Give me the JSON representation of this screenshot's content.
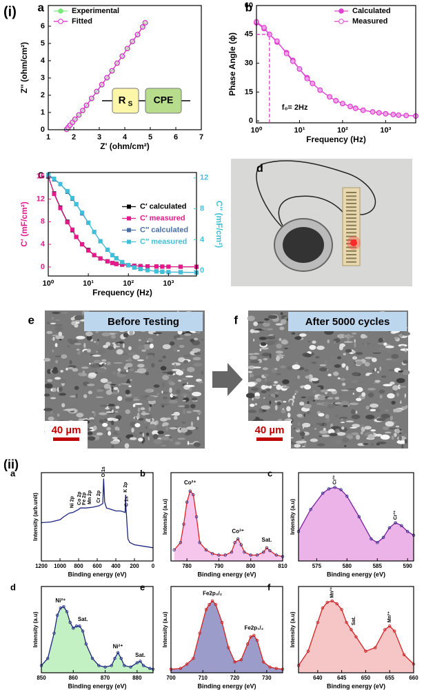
{
  "figure": {
    "part_i": "(i)",
    "part_ii": "(ii)",
    "panel_d": "d",
    "panel_e": "e",
    "panel_f": "f",
    "caption_e": "Before Testing",
    "caption_f": "After 5000 cycles",
    "scale_e": "40 µm",
    "scale_f": "40 µm"
  },
  "chart_data": [
    {
      "panel": "a",
      "type": "scatter",
      "marker": "circle",
      "xlabel": "Z' (ohm/cm²)",
      "ylabel": "Z'' (ohm/cm²)",
      "xlim": [
        1,
        7
      ],
      "xticks": [
        1,
        2,
        3,
        4,
        5,
        6,
        7
      ],
      "ylim": [
        0,
        7.2
      ],
      "yticks": [
        0,
        1,
        2,
        3,
        4,
        5,
        6
      ],
      "legend": "upper left",
      "x": [
        1.72,
        1.78,
        1.85,
        1.95,
        2.05,
        2.2,
        2.35,
        2.5,
        2.7,
        2.9,
        3.1,
        3.3,
        3.5,
        3.7,
        3.9,
        4.1,
        4.3,
        4.5,
        4.7,
        4.8
      ],
      "series": [
        {
          "name": "Experimental",
          "color": "#7be87b",
          "values": [
            0.02,
            0.12,
            0.25,
            0.42,
            0.6,
            0.85,
            1.1,
            1.4,
            1.8,
            2.2,
            2.6,
            3.0,
            3.4,
            3.85,
            4.25,
            4.7,
            5.1,
            5.5,
            5.95,
            6.2
          ]
        },
        {
          "name": "Fitted",
          "color": "#e020d0",
          "values": [
            0.02,
            0.13,
            0.26,
            0.43,
            0.61,
            0.86,
            1.12,
            1.42,
            1.82,
            2.22,
            2.62,
            3.02,
            3.42,
            3.86,
            4.27,
            4.71,
            5.12,
            5.52,
            5.96,
            6.2
          ]
        }
      ],
      "inset": {
        "resistor": "R",
        "resistor_sub": "S",
        "element": "CPE"
      }
    },
    {
      "panel": "b",
      "type": "scatter",
      "marker": "circle",
      "xlabel": "Frequency (Hz)",
      "ylabel": "Phase Angle (ϕ)",
      "xlog": true,
      "xlim": [
        1,
        5000
      ],
      "xticks": [
        {
          "value": 1,
          "label": "10⁰"
        },
        {
          "value": 10,
          "label": "10¹"
        },
        {
          "value": 100,
          "label": "10²"
        },
        {
          "value": 1000,
          "label": "10³"
        }
      ],
      "ylim": [
        -1,
        60
      ],
      "yticks": [
        0,
        15,
        30,
        45,
        60
      ],
      "legend": "upper right",
      "x": [
        1,
        1.5,
        2,
        3,
        5,
        7,
        10,
        15,
        20,
        30,
        50,
        70,
        100,
        150,
        200,
        300,
        500,
        700,
        1000,
        1500,
        2000,
        3000,
        5000
      ],
      "series": [
        {
          "name": "Calculated",
          "color": "#e040d0",
          "values": [
            51,
            48,
            45,
            41,
            35.5,
            31.5,
            27,
            22.5,
            19.5,
            16,
            12.5,
            10.5,
            9,
            7.5,
            6.6,
            5.6,
            4.7,
            4.2,
            3.7,
            3.3,
            3,
            2.8,
            2.6
          ]
        },
        {
          "name": "Measured",
          "color": "#e040d0",
          "values": [
            51.5,
            48.5,
            45,
            41.5,
            35,
            31,
            27,
            22,
            19.5,
            16,
            12.5,
            10.5,
            9,
            7.5,
            6.5,
            5.5,
            4.7,
            4.2,
            3.7,
            3.3,
            3,
            2.8,
            2.5
          ]
        }
      ],
      "annotations": [
        {
          "text": "f₀= 2Hz",
          "x": 2,
          "y": 45
        }
      ]
    },
    {
      "panel": "c",
      "type": "scatter",
      "marker": "square",
      "xlabel": "Frequency (Hz)",
      "ylabel": "C′ (mF/cm²)",
      "y2label": "C″ (mF/cm²)",
      "xlog": true,
      "y_color": "#e6198c",
      "y2_color": "#40c0d8",
      "xlim": [
        1,
        5000
      ],
      "xticks": [
        {
          "value": 1,
          "label": "10⁰"
        },
        {
          "value": 10,
          "label": "10¹"
        },
        {
          "value": 100,
          "label": "10²"
        },
        {
          "value": 1000,
          "label": "10³"
        }
      ],
      "ylim": [
        -1.6,
        16.7
      ],
      "yticks": [
        0,
        4,
        8,
        12,
        16
      ],
      "y2lim": [
        -0.7,
        12.7
      ],
      "y2ticks": [
        0,
        4,
        8,
        12
      ],
      "legend": "center right",
      "x": [
        1,
        1.4,
        2,
        3,
        4,
        5,
        7,
        10,
        14,
        20,
        30,
        40,
        50,
        70,
        100,
        140,
        200,
        300,
        500,
        700,
        1000,
        2000,
        5000
      ],
      "series": [
        {
          "name": "C′ calculated",
          "color": "#000000",
          "values": [
            16,
            13,
            10.5,
            8,
            6.5,
            5.3,
            4,
            3,
            2.1,
            1.5,
            1,
            0.7,
            0.55,
            0.4,
            0.3,
            0.2,
            0.15,
            0.1,
            0.08,
            0.06,
            0.05,
            0.04,
            0.03
          ]
        },
        {
          "name": "C′ measured",
          "color": "#e6198c",
          "values": [
            16.1,
            12.9,
            10.4,
            7.9,
            6.6,
            5.3,
            4,
            2.9,
            2.1,
            1.5,
            1,
            0.7,
            0.5,
            0.4,
            0.3,
            0.2,
            0.15,
            0.1,
            0.08,
            0.06,
            0.05,
            0.04,
            0.03
          ]
        },
        {
          "name": "C″ calculated",
          "color": "#4a6fa5",
          "axis": "y2",
          "values": [
            12.3,
            11.8,
            11.2,
            10.2,
            9.3,
            8.6,
            7.4,
            6.2,
            5,
            3.8,
            2.7,
            2,
            1.6,
            1.1,
            0.7,
            0.4,
            0.2,
            0.05,
            -0.1,
            -0.15,
            -0.2,
            -0.2,
            -0.25
          ]
        },
        {
          "name": "C″ measured",
          "color": "#40c0d8",
          "axis": "y2",
          "values": [
            12.4,
            11.9,
            11.2,
            10.3,
            9.4,
            8.6,
            7.5,
            6.2,
            5,
            3.8,
            2.7,
            2,
            1.6,
            1.1,
            0.7,
            0.4,
            0.2,
            0.05,
            -0.1,
            -0.15,
            -0.2,
            -0.22,
            -0.25
          ]
        }
      ]
    },
    {
      "panel": "a",
      "type": "line",
      "xlabel": "Binding energy (eV)",
      "ylabel": "Intensity (arb.unit)",
      "xlim": [
        1200,
        0
      ],
      "xticks": [
        1200,
        1000,
        800,
        600,
        400,
        200,
        0
      ],
      "ylim": [
        0,
        120
      ],
      "x": [
        1200,
        1100,
        1000,
        960,
        900,
        860,
        800,
        780,
        720,
        650,
        580,
        540,
        531,
        520,
        500,
        450,
        400,
        350,
        300,
        295,
        290,
        285,
        280,
        270,
        250,
        200,
        100,
        0
      ],
      "series": [
        {
          "color": "#1a237e",
          "values": [
            52,
            53,
            56,
            60,
            65,
            66,
            70,
            72,
            72,
            73,
            75,
            78,
            112,
            80,
            72,
            70,
            68,
            68,
            66,
            90,
            70,
            62,
            50,
            30,
            25,
            22,
            20,
            18
          ]
        }
      ],
      "annotations": [
        {
          "text": "Ni 2p",
          "x": 870,
          "y": 72
        },
        {
          "text": "Co 2p",
          "x": 790,
          "y": 76
        },
        {
          "text": "Fe 2p",
          "x": 740,
          "y": 76
        },
        {
          "text": "Mn 2p",
          "x": 680,
          "y": 77
        },
        {
          "text": "Cr 2p",
          "x": 585,
          "y": 79
        },
        {
          "text": "O 1s",
          "x": 531,
          "y": 114
        },
        {
          "text": "K 2p",
          "x": 295,
          "y": 93
        },
        {
          "text": "C 1s",
          "x": 285,
          "y": 74
        }
      ]
    },
    {
      "panel": "b",
      "type": "line",
      "xlabel": "Binding energy (eV)",
      "ylabel": "Intensity (a.u)",
      "xlim": [
        775,
        810
      ],
      "xticks": [
        780,
        790,
        800,
        810
      ],
      "ylim": [
        0,
        120
      ],
      "x": [
        776,
        778,
        779,
        780,
        781,
        782,
        783,
        784,
        786,
        788,
        790,
        792,
        794,
        795,
        796,
        797,
        798,
        800,
        802,
        804,
        805,
        806,
        808,
        810
      ],
      "series": [
        {
          "color": "#e02020",
          "fill": "#f0a0e0",
          "marker_color": "#1a237e",
          "values": [
            15,
            25,
            50,
            80,
            95,
            90,
            60,
            25,
            15,
            10,
            8,
            8,
            12,
            25,
            30,
            22,
            12,
            8,
            8,
            12,
            18,
            14,
            8,
            6
          ]
        }
      ],
      "annotations": [
        {
          "text": "Co²⁺",
          "x": 781,
          "y": 106
        },
        {
          "text": "Co²⁺",
          "x": 796,
          "y": 40
        },
        {
          "text": "Sat.",
          "x": 805,
          "y": 28
        }
      ]
    },
    {
      "panel": "c",
      "type": "line",
      "xlabel": "Binding energy (eV)",
      "ylabel": "Intensity (a.u)",
      "xlim": [
        572,
        591
      ],
      "xticks": [
        575,
        580,
        585,
        590
      ],
      "ylim": [
        0,
        120
      ],
      "x": [
        572,
        574,
        576,
        577,
        578,
        579,
        580,
        582,
        584,
        585,
        586,
        587,
        588,
        589,
        590,
        591
      ],
      "series": [
        {
          "color": "#7a1fa0",
          "fill": "#e080d8",
          "marker_color": "#1a237e",
          "values": [
            40,
            70,
            92,
            98,
            100,
            97,
            88,
            60,
            30,
            25,
            32,
            45,
            52,
            48,
            40,
            35
          ]
        }
      ],
      "annotations": [
        {
          "text": "Cr³⁺",
          "x": 578,
          "y": 104
        },
        {
          "text": "Cr³⁺",
          "x": 588,
          "y": 56
        }
      ]
    },
    {
      "panel": "d",
      "type": "line",
      "xlabel": "Binding energy (eV)",
      "ylabel": "Intensity (a.u)",
      "xlim": [
        850,
        885
      ],
      "xticks": [
        850,
        860,
        870,
        880
      ],
      "ylim": [
        0,
        120
      ],
      "x": [
        850,
        852,
        854,
        855,
        856,
        857,
        858,
        859,
        860,
        861,
        862,
        863,
        864,
        866,
        868,
        870,
        872,
        873,
        874,
        875,
        876,
        878,
        880,
        881,
        882,
        884,
        885
      ],
      "series": [
        {
          "color": "#1a237e",
          "fill": "#9be89b",
          "marker_color": "#1a237e",
          "values": [
            10,
            20,
            55,
            80,
            90,
            92,
            85,
            70,
            62,
            65,
            65,
            58,
            40,
            20,
            10,
            8,
            10,
            20,
            28,
            20,
            10,
            8,
            14,
            16,
            10,
            6,
            5
          ]
        }
      ],
      "annotations": [
        {
          "text": "Ni²⁺",
          "x": 856,
          "y": 100
        },
        {
          "text": "Sat.",
          "x": 863,
          "y": 74
        },
        {
          "text": "Ni²⁺",
          "x": 874,
          "y": 36
        },
        {
          "text": "Sat.",
          "x": 881,
          "y": 24
        }
      ]
    },
    {
      "panel": "e",
      "type": "line",
      "xlabel": "Binding energy (eV)",
      "ylabel": "Intensity (a.u)",
      "xlim": [
        700,
        735
      ],
      "xticks": [
        700,
        710,
        720,
        730
      ],
      "ylim": [
        0,
        120
      ],
      "x": [
        700,
        703,
        705,
        707,
        709,
        711,
        712,
        713,
        714,
        716,
        718,
        720,
        722,
        724,
        725,
        726,
        727,
        729,
        731,
        733,
        735
      ],
      "series": [
        {
          "color": "#d42020",
          "fill": "#5a5aa8",
          "marker_color": "#c01818",
          "values": [
            5,
            6,
            12,
            20,
            55,
            88,
            95,
            100,
            95,
            70,
            35,
            15,
            18,
            40,
            50,
            52,
            45,
            15,
            8,
            6,
            5
          ]
        }
      ],
      "annotations": [
        {
          "text": "Fe2p₃/₂",
          "x": 713,
          "y": 110
        },
        {
          "text": "Fe2p₁/₂",
          "x": 726,
          "y": 62
        }
      ]
    },
    {
      "panel": "f",
      "type": "line",
      "xlabel": "Binding energy (eV)",
      "ylabel": "Intensity (a.u)",
      "xlim": [
        636,
        660
      ],
      "xticks": [
        640,
        645,
        650,
        655,
        660
      ],
      "ylim": [
        0,
        120
      ],
      "x": [
        636,
        638,
        640,
        641,
        642,
        643,
        644,
        645,
        646,
        647,
        648,
        650,
        652,
        654,
        655,
        656,
        658,
        660
      ],
      "series": [
        {
          "color": "#d42020",
          "fill": "#f0a0a0",
          "marker_color": "#c01818",
          "values": [
            10,
            30,
            70,
            90,
            98,
            100,
            96,
            88,
            70,
            60,
            50,
            30,
            35,
            60,
            65,
            58,
            25,
            12
          ]
        }
      ],
      "annotations": [
        {
          "text": "Mn³⁺",
          "x": 643,
          "y": 104
        },
        {
          "text": "Sat.",
          "x": 647.5,
          "y": 66
        },
        {
          "text": "Mn³⁺",
          "x": 655,
          "y": 70
        }
      ]
    }
  ]
}
